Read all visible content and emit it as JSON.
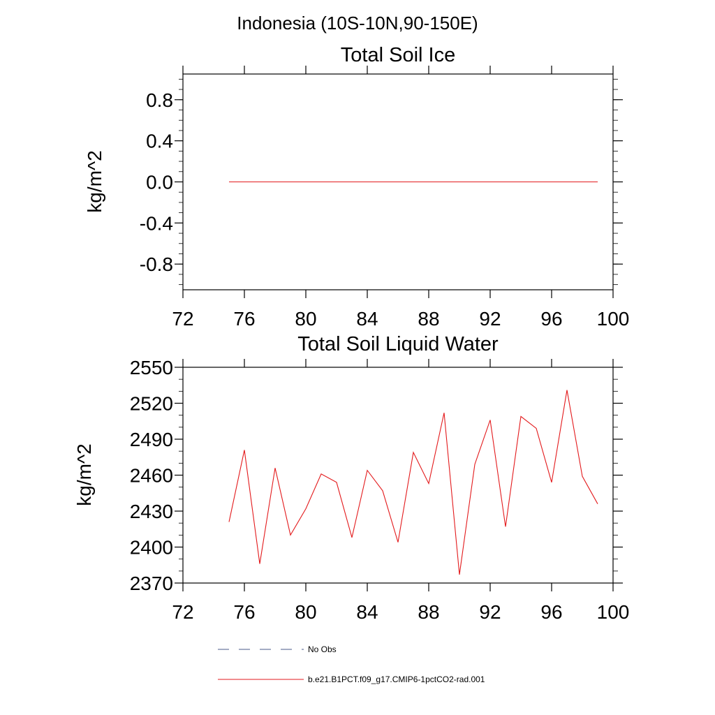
{
  "figure": {
    "title": "Indonesia (10S-10N,90-150E)"
  },
  "colors": {
    "model_line": "#e31a1c",
    "obs_line": "#4a5a8a",
    "axes": "#000000"
  },
  "chart_data": [
    {
      "type": "line",
      "title": "Total Soil Ice",
      "xlabel": "",
      "ylabel": "kg/m^2",
      "xlim": [
        72,
        100
      ],
      "ylim": [
        -1.05,
        1.05
      ],
      "xticks": [
        72,
        76,
        80,
        84,
        88,
        92,
        96,
        100
      ],
      "xtick_labels": [
        "72",
        "76",
        "80",
        "84",
        "88",
        "92",
        "96",
        "100"
      ],
      "yticks": [
        -0.8,
        -0.4,
        0.0,
        0.4,
        0.8
      ],
      "ytick_labels": [
        "-0.8",
        "-0.4",
        "0.0",
        "0.4",
        "0.8"
      ],
      "minor_step": 0.1,
      "grid": false,
      "series": [
        {
          "name": "b.e21.B1PCT.f09_g17.CMIP6-1pctCO2-rad.001",
          "x": [
            75,
            76,
            77,
            78,
            79,
            80,
            81,
            82,
            83,
            84,
            85,
            86,
            87,
            88,
            89,
            90,
            91,
            92,
            93,
            94,
            95,
            96,
            97,
            98,
            99
          ],
          "values": [
            0,
            0,
            0,
            0,
            0,
            0,
            0,
            0,
            0,
            0,
            0,
            0,
            0,
            0,
            0,
            0,
            0,
            0,
            0,
            0,
            0,
            0,
            0,
            0,
            0
          ]
        }
      ]
    },
    {
      "type": "line",
      "title": "Total Soil Liquid Water",
      "xlabel": "",
      "ylabel": "kg/m^2",
      "xlim": [
        72,
        100
      ],
      "ylim": [
        2370,
        2550
      ],
      "xticks": [
        72,
        76,
        80,
        84,
        88,
        92,
        96,
        100
      ],
      "xtick_labels": [
        "72",
        "76",
        "80",
        "84",
        "88",
        "92",
        "96",
        "100"
      ],
      "yticks": [
        2370,
        2400,
        2430,
        2460,
        2490,
        2520,
        2550
      ],
      "ytick_labels": [
        "2370",
        "2400",
        "2430",
        "2460",
        "2490",
        "2520",
        "2550"
      ],
      "minor_step": 10,
      "grid": false,
      "series": [
        {
          "name": "b.e21.B1PCT.f09_g17.CMIP6-1pctCO2-rad.001",
          "x": [
            75,
            76,
            77,
            78,
            79,
            80,
            81,
            82,
            83,
            84,
            85,
            86,
            87,
            88,
            89,
            90,
            91,
            92,
            93,
            94,
            95,
            96,
            97,
            98,
            99
          ],
          "values": [
            2421,
            2481,
            2386,
            2466,
            2410,
            2432,
            2461,
            2454,
            2408,
            2464,
            2447,
            2404,
            2479,
            2453,
            2512,
            2377,
            2469,
            2506,
            2417,
            2509,
            2499,
            2454,
            2531,
            2459,
            2436
          ]
        }
      ]
    }
  ],
  "legend": {
    "placement": "bottom",
    "items": [
      {
        "label": "No Obs",
        "style": "dashed",
        "color": "#4a5a8a"
      },
      {
        "label": "b.e21.B1PCT.f09_g17.CMIP6-1pctCO2-rad.001",
        "style": "solid",
        "color": "#e31a1c"
      }
    ]
  }
}
